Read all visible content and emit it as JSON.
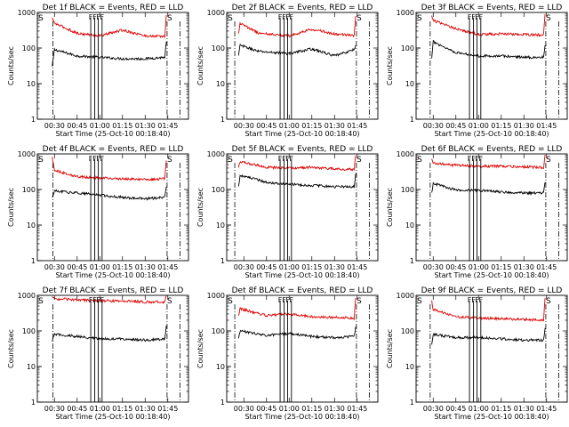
{
  "figure": {
    "ylabel": "Counts/sec",
    "xlabel": "Start Time (25-Oct-10 00:18:40)",
    "x_ticks": [
      "00:30",
      "00:45",
      "01:00",
      "01:15",
      "01:30",
      "01:45"
    ],
    "y_ticks": [
      "1",
      "10",
      "100",
      "1000"
    ],
    "colors": {
      "events": "#000000",
      "lld": "#e00000",
      "axes": "#000000"
    }
  },
  "chart_data": [
    {
      "type": "line",
      "title": "Det 1f BLACK = Events, RED = LLD",
      "xlabel": "Start Time (25-Oct-10 00:18:40)",
      "ylabel": "Counts/sec",
      "xlim": [
        "00:18:40",
        "01:58:40"
      ],
      "ylim": [
        1,
        1000
      ],
      "y_scale": "log",
      "x_time_ticks": [
        "00:30",
        "00:45",
        "01:00",
        "01:15",
        "01:30",
        "01:45"
      ],
      "event_markers": [
        {
          "x": "00:18:40",
          "label": "S"
        },
        {
          "x": "01:44:30",
          "label": "S"
        },
        {
          "x": "00:54:00",
          "label": "F"
        },
        {
          "x": "00:56:40",
          "label": "F"
        },
        {
          "x": "00:59:00",
          "label": "F"
        },
        {
          "x": "01:01:30",
          "label": "F"
        }
      ],
      "reference_lines": [
        {
          "x": "00:29:00",
          "style": "dash-dot"
        },
        {
          "x": "01:44:30",
          "style": "dash-dot"
        },
        {
          "x": "01:53:00",
          "style": "dash-dot"
        }
      ],
      "series": [
        {
          "name": "Events",
          "color": "#000000",
          "x": [
            "00:28:30",
            "00:30:00",
            "00:45:00",
            "01:00:00",
            "01:15:00",
            "01:30:00",
            "01:43:00",
            "01:44:00"
          ],
          "y": [
            30,
            90,
            60,
            55,
            50,
            50,
            55,
            150
          ]
        },
        {
          "name": "LLD",
          "color": "#e00000",
          "x": [
            "00:28:30",
            "00:30:00",
            "00:45:00",
            "01:00:00",
            "01:15:00",
            "01:30:00",
            "01:43:00",
            "01:44:00"
          ],
          "y": [
            700,
            500,
            260,
            220,
            320,
            220,
            210,
            850
          ]
        }
      ]
    },
    {
      "type": "line",
      "title": "Det 2f BLACK = Events, RED = LLD",
      "xlabel": "Start Time (25-Oct-10 00:18:40)",
      "ylabel": "Counts/sec",
      "xlim": [
        "00:18:40",
        "01:58:40"
      ],
      "ylim": [
        1,
        1000
      ],
      "y_scale": "log",
      "x_time_ticks": [
        "00:30",
        "00:45",
        "01:00",
        "01:15",
        "01:30",
        "01:45"
      ],
      "event_markers": [
        {
          "x": "00:18:40",
          "label": "S"
        },
        {
          "x": "01:44:30",
          "label": "S"
        },
        {
          "x": "00:54:00",
          "label": "F"
        },
        {
          "x": "00:56:40",
          "label": "F"
        },
        {
          "x": "00:59:00",
          "label": "F"
        },
        {
          "x": "01:01:30",
          "label": "F"
        }
      ],
      "reference_lines": [
        {
          "x": "00:24:00",
          "style": "dash-dot"
        },
        {
          "x": "01:44:30",
          "style": "dash-dot"
        },
        {
          "x": "01:53:00",
          "style": "dash-dot"
        }
      ],
      "series": [
        {
          "name": "Events",
          "color": "#000000",
          "x": [
            "00:26:30",
            "00:27:30",
            "00:40:00",
            "01:00:00",
            "01:15:00",
            "01:30:00",
            "01:43:00",
            "01:44:00"
          ],
          "y": [
            60,
            120,
            80,
            70,
            95,
            60,
            90,
            120
          ]
        },
        {
          "name": "LLD",
          "color": "#e00000",
          "x": [
            "00:26:30",
            "00:27:30",
            "00:40:00",
            "01:00:00",
            "01:15:00",
            "01:30:00",
            "01:43:00",
            "01:44:00"
          ],
          "y": [
            250,
            500,
            260,
            220,
            340,
            250,
            220,
            800
          ]
        }
      ]
    },
    {
      "type": "line",
      "title": "Det 3f BLACK = Events, RED = LLD",
      "xlabel": "Start Time (25-Oct-10 00:18:40)",
      "ylabel": "Counts/sec",
      "xlim": [
        "00:18:40",
        "01:58:40"
      ],
      "ylim": [
        1,
        1000
      ],
      "y_scale": "log",
      "x_time_ticks": [
        "00:30",
        "00:45",
        "01:00",
        "01:15",
        "01:30",
        "01:45"
      ],
      "event_markers": [
        {
          "x": "00:18:40",
          "label": "S"
        },
        {
          "x": "01:44:30",
          "label": "S"
        },
        {
          "x": "00:54:00",
          "label": "F"
        },
        {
          "x": "00:56:40",
          "label": "F"
        },
        {
          "x": "00:59:00",
          "label": "F"
        },
        {
          "x": "01:01:30",
          "label": "F"
        }
      ],
      "reference_lines": [
        {
          "x": "00:28:00",
          "style": "dash-dot"
        },
        {
          "x": "01:44:30",
          "style": "dash-dot"
        },
        {
          "x": "01:53:00",
          "style": "dash-dot"
        }
      ],
      "series": [
        {
          "name": "Events",
          "color": "#000000",
          "x": [
            "00:29:00",
            "00:30:00",
            "00:45:00",
            "01:00:00",
            "01:15:00",
            "01:30:00",
            "01:43:00",
            "01:44:00"
          ],
          "y": [
            50,
            150,
            75,
            60,
            60,
            55,
            55,
            120
          ]
        },
        {
          "name": "LLD",
          "color": "#e00000",
          "x": [
            "00:29:00",
            "00:30:00",
            "00:45:00",
            "01:00:00",
            "01:15:00",
            "01:30:00",
            "01:43:00",
            "01:44:00"
          ],
          "y": [
            800,
            600,
            350,
            240,
            250,
            240,
            230,
            900
          ]
        }
      ]
    },
    {
      "type": "line",
      "title": "Det 4f BLACK = Events, RED = LLD",
      "xlabel": "Start Time (25-Oct-10 00:18:40)",
      "ylabel": "Counts/sec",
      "xlim": [
        "00:18:40",
        "01:58:40"
      ],
      "ylim": [
        1,
        1000
      ],
      "y_scale": "log",
      "x_time_ticks": [
        "00:30",
        "00:45",
        "01:00",
        "01:15",
        "01:30",
        "01:45"
      ],
      "event_markers": [
        {
          "x": "00:18:40",
          "label": "S"
        },
        {
          "x": "01:44:30",
          "label": "S"
        },
        {
          "x": "00:54:00",
          "label": "F"
        },
        {
          "x": "00:56:40",
          "label": "F"
        },
        {
          "x": "00:59:00",
          "label": "F"
        },
        {
          "x": "01:01:30",
          "label": "F"
        }
      ],
      "reference_lines": [
        {
          "x": "00:29:00",
          "style": "dash-dot"
        },
        {
          "x": "01:44:30",
          "style": "dash-dot"
        },
        {
          "x": "01:53:00",
          "style": "dash-dot"
        }
      ],
      "series": [
        {
          "name": "Events",
          "color": "#000000",
          "x": [
            "00:28:30",
            "00:30:00",
            "00:45:00",
            "01:00:00",
            "01:15:00",
            "01:30:00",
            "01:43:00",
            "01:44:00"
          ],
          "y": [
            60,
            90,
            80,
            70,
            60,
            55,
            60,
            120
          ]
        },
        {
          "name": "LLD",
          "color": "#e00000",
          "x": [
            "00:28:30",
            "00:30:00",
            "00:45:00",
            "01:00:00",
            "01:15:00",
            "01:30:00",
            "01:43:00",
            "01:44:00"
          ],
          "y": [
            800,
            350,
            230,
            210,
            200,
            190,
            200,
            650
          ]
        }
      ]
    },
    {
      "type": "line",
      "title": "Det 5f BLACK = Events, RED = LLD",
      "xlabel": "Start Time (25-Oct-10 00:18:40)",
      "ylabel": "Counts/sec",
      "xlim": [
        "00:18:40",
        "01:58:40"
      ],
      "ylim": [
        1,
        1000
      ],
      "y_scale": "log",
      "x_time_ticks": [
        "00:30",
        "00:45",
        "01:00",
        "01:15",
        "01:30",
        "01:45"
      ],
      "event_markers": [
        {
          "x": "00:18:40",
          "label": "S"
        },
        {
          "x": "01:44:30",
          "label": "S"
        },
        {
          "x": "00:54:00",
          "label": "F"
        },
        {
          "x": "00:56:40",
          "label": "F"
        },
        {
          "x": "00:59:00",
          "label": "F"
        },
        {
          "x": "01:01:30",
          "label": "F"
        }
      ],
      "reference_lines": [
        {
          "x": "00:24:00",
          "style": "dash-dot"
        },
        {
          "x": "01:44:30",
          "style": "dash-dot"
        },
        {
          "x": "01:53:00",
          "style": "dash-dot"
        }
      ],
      "series": [
        {
          "name": "Events",
          "color": "#000000",
          "x": [
            "00:26:30",
            "00:27:30",
            "00:45:00",
            "01:00:00",
            "01:15:00",
            "01:30:00",
            "01:43:00",
            "01:44:00"
          ],
          "y": [
            120,
            250,
            160,
            140,
            130,
            120,
            120,
            280
          ]
        },
        {
          "name": "LLD",
          "color": "#e00000",
          "x": [
            "00:26:30",
            "00:27:30",
            "00:45:00",
            "01:00:00",
            "01:15:00",
            "01:30:00",
            "01:43:00",
            "01:44:00"
          ],
          "y": [
            400,
            600,
            420,
            400,
            420,
            380,
            360,
            900
          ]
        }
      ]
    },
    {
      "type": "line",
      "title": "Det 6f BLACK = Events, RED = LLD",
      "xlabel": "Start Time (25-Oct-10 00:18:40)",
      "ylabel": "Counts/sec",
      "xlim": [
        "00:18:40",
        "01:58:40"
      ],
      "ylim": [
        1,
        1000
      ],
      "y_scale": "log",
      "x_time_ticks": [
        "00:30",
        "00:45",
        "01:00",
        "01:15",
        "01:30",
        "01:45"
      ],
      "event_markers": [
        {
          "x": "00:18:40",
          "label": "S"
        },
        {
          "x": "01:44:30",
          "label": "S"
        },
        {
          "x": "00:54:00",
          "label": "F"
        },
        {
          "x": "00:56:40",
          "label": "F"
        },
        {
          "x": "00:59:00",
          "label": "F"
        },
        {
          "x": "01:01:30",
          "label": "F"
        }
      ],
      "reference_lines": [
        {
          "x": "00:28:00",
          "style": "dash-dot"
        },
        {
          "x": "01:44:30",
          "style": "dash-dot"
        },
        {
          "x": "01:53:00",
          "style": "dash-dot"
        }
      ],
      "series": [
        {
          "name": "Events",
          "color": "#000000",
          "x": [
            "00:29:00",
            "00:30:00",
            "00:45:00",
            "01:00:00",
            "01:15:00",
            "01:30:00",
            "01:43:00",
            "01:44:00"
          ],
          "y": [
            80,
            150,
            95,
            95,
            85,
            80,
            80,
            160
          ]
        },
        {
          "name": "LLD",
          "color": "#e00000",
          "x": [
            "00:29:00",
            "00:30:00",
            "00:45:00",
            "01:00:00",
            "01:15:00",
            "01:30:00",
            "01:43:00",
            "01:44:00"
          ],
          "y": [
            700,
            550,
            480,
            450,
            450,
            430,
            420,
            950
          ]
        }
      ]
    },
    {
      "type": "line",
      "title": "Det 7f BLACK = Events, RED = LLD",
      "xlabel": "Start Time (25-Oct-10 00:18:40)",
      "ylabel": "Counts/sec",
      "xlim": [
        "00:18:40",
        "01:58:40"
      ],
      "ylim": [
        1,
        1000
      ],
      "y_scale": "log",
      "x_time_ticks": [
        "00:30",
        "00:45",
        "01:00",
        "01:15",
        "01:30",
        "01:45"
      ],
      "event_markers": [
        {
          "x": "00:18:40",
          "label": "S"
        },
        {
          "x": "01:44:30",
          "label": "S"
        },
        {
          "x": "00:54:00",
          "label": "F"
        },
        {
          "x": "00:56:40",
          "label": "F"
        },
        {
          "x": "00:59:00",
          "label": "F"
        },
        {
          "x": "01:01:30",
          "label": "F"
        }
      ],
      "reference_lines": [
        {
          "x": "00:29:00",
          "style": "dash-dot"
        },
        {
          "x": "01:44:30",
          "style": "dash-dot"
        },
        {
          "x": "01:53:00",
          "style": "dash-dot"
        }
      ],
      "series": [
        {
          "name": "Events",
          "color": "#000000",
          "x": [
            "00:28:30",
            "00:30:00",
            "00:45:00",
            "01:00:00",
            "01:15:00",
            "01:30:00",
            "01:43:00",
            "01:44:00"
          ],
          "y": [
            50,
            80,
            70,
            60,
            60,
            55,
            60,
            140
          ]
        },
        {
          "name": "LLD",
          "color": "#e00000",
          "x": [
            "00:28:30",
            "00:30:00",
            "00:45:00",
            "01:00:00",
            "01:15:00",
            "01:30:00",
            "01:43:00",
            "01:44:00"
          ],
          "y": [
            900,
            800,
            750,
            700,
            700,
            650,
            650,
            1000
          ]
        }
      ]
    },
    {
      "type": "line",
      "title": "Det 8f BLACK = Events, RED = LLD",
      "xlabel": "Start Time (25-Oct-10 00:18:40)",
      "ylabel": "Counts/sec",
      "xlim": [
        "00:18:40",
        "01:58:40"
      ],
      "ylim": [
        1,
        1000
      ],
      "y_scale": "log",
      "x_time_ticks": [
        "00:30",
        "00:45",
        "01:00",
        "01:15",
        "01:30",
        "01:45"
      ],
      "event_markers": [
        {
          "x": "00:18:40",
          "label": "S"
        },
        {
          "x": "01:44:30",
          "label": "S"
        },
        {
          "x": "00:54:00",
          "label": "F"
        },
        {
          "x": "00:56:40",
          "label": "F"
        },
        {
          "x": "00:59:00",
          "label": "F"
        },
        {
          "x": "01:01:30",
          "label": "F"
        }
      ],
      "reference_lines": [
        {
          "x": "00:24:00",
          "style": "dash-dot"
        },
        {
          "x": "01:44:30",
          "style": "dash-dot"
        },
        {
          "x": "01:53:00",
          "style": "dash-dot"
        }
      ],
      "series": [
        {
          "name": "Events",
          "color": "#000000",
          "x": [
            "00:26:30",
            "00:27:30",
            "00:45:00",
            "01:00:00",
            "01:15:00",
            "01:30:00",
            "01:43:00",
            "01:44:00"
          ],
          "y": [
            60,
            100,
            75,
            85,
            70,
            65,
            70,
            130
          ]
        },
        {
          "name": "LLD",
          "color": "#e00000",
          "x": [
            "00:26:30",
            "00:27:30",
            "00:45:00",
            "01:00:00",
            "01:15:00",
            "01:30:00",
            "01:43:00",
            "01:44:00"
          ],
          "y": [
            260,
            420,
            270,
            300,
            250,
            240,
            230,
            850
          ]
        }
      ]
    },
    {
      "type": "line",
      "title": "Det 9f BLACK = Events, RED = LLD",
      "xlabel": "Start Time (25-Oct-10 00:18:40)",
      "ylabel": "Counts/sec",
      "xlim": [
        "00:18:40",
        "01:58:40"
      ],
      "ylim": [
        1,
        1000
      ],
      "y_scale": "log",
      "x_time_ticks": [
        "00:30",
        "00:45",
        "01:00",
        "01:15",
        "01:30",
        "01:45"
      ],
      "event_markers": [
        {
          "x": "00:18:40",
          "label": "S"
        },
        {
          "x": "01:44:30",
          "label": "S"
        },
        {
          "x": "00:54:00",
          "label": "F"
        },
        {
          "x": "00:56:40",
          "label": "F"
        },
        {
          "x": "00:59:00",
          "label": "F"
        },
        {
          "x": "01:01:30",
          "label": "F"
        }
      ],
      "reference_lines": [
        {
          "x": "00:28:00",
          "style": "dash-dot"
        },
        {
          "x": "01:44:30",
          "style": "dash-dot"
        },
        {
          "x": "01:53:00",
          "style": "dash-dot"
        }
      ],
      "series": [
        {
          "name": "Events",
          "color": "#000000",
          "x": [
            "00:29:00",
            "00:30:00",
            "00:45:00",
            "01:00:00",
            "01:15:00",
            "01:30:00",
            "01:43:00",
            "01:44:00"
          ],
          "y": [
            40,
            80,
            65,
            65,
            60,
            55,
            55,
            120
          ]
        },
        {
          "name": "LLD",
          "color": "#e00000",
          "x": [
            "00:29:00",
            "00:30:00",
            "00:45:00",
            "01:00:00",
            "01:15:00",
            "01:30:00",
            "01:43:00",
            "01:44:00"
          ],
          "y": [
            700,
            400,
            250,
            230,
            220,
            210,
            200,
            850
          ]
        }
      ]
    }
  ]
}
